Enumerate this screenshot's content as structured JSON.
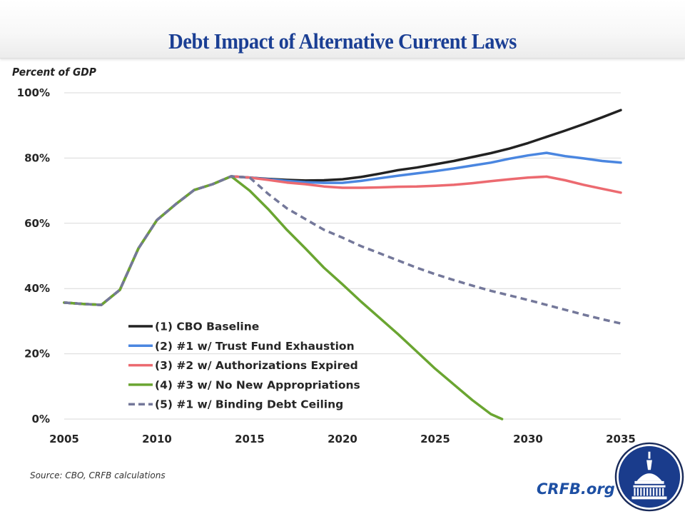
{
  "header": {
    "title": "Debt Impact of Alternative Current Laws"
  },
  "footer": {
    "source": "Source: CBO, CRFB calculations",
    "site": "CRFB.org",
    "logo_icon": "capitol-dome-seal-icon"
  },
  "colors": {
    "title": "#1b3f94",
    "cbo_baseline": "#222222",
    "trust_fund": "#4a86e0",
    "authorizations": "#ec6a70",
    "no_appropriations": "#6aa531",
    "debt_ceiling": "#74789a",
    "site": "#1d4fa3",
    "logo": "#1a3c8c"
  },
  "chart_data": {
    "type": "line",
    "title": "Debt Impact of Alternative Current Laws",
    "xlabel": "",
    "ylabel": "Percent of GDP",
    "xlim": [
      2005,
      2035
    ],
    "ylim": [
      0,
      100
    ],
    "x_ticks": [
      2005,
      2010,
      2015,
      2020,
      2025,
      2030,
      2035
    ],
    "x_tick_labels": [
      "2005",
      "2010",
      "2015",
      "2020",
      "2025",
      "2030",
      "2035"
    ],
    "y_ticks": [
      0,
      20,
      40,
      60,
      80,
      100
    ],
    "y_tick_labels": [
      "0%",
      "20%",
      "40%",
      "60%",
      "80%",
      "100%"
    ],
    "grid": "horizontal",
    "legend_position": "lower-left",
    "series": [
      {
        "name": "(1) CBO Baseline",
        "style": "solid",
        "x": [
          2005,
          2006,
          2007,
          2008,
          2009,
          2010,
          2011,
          2012,
          2013,
          2014,
          2015,
          2016,
          2017,
          2018,
          2019,
          2020,
          2021,
          2022,
          2023,
          2024,
          2025,
          2026,
          2027,
          2028,
          2029,
          2030,
          2031,
          2032,
          2033,
          2034,
          2035
        ],
        "values": [
          35.7,
          35.3,
          35.0,
          39.6,
          52.3,
          61.0,
          65.8,
          70.2,
          72.0,
          74.4,
          74.0,
          73.6,
          73.3,
          73.1,
          73.2,
          73.5,
          74.2,
          75.2,
          76.3,
          77.1,
          78.1,
          79.1,
          80.3,
          81.5,
          82.9,
          84.6,
          86.5,
          88.4,
          90.4,
          92.5,
          94.7
        ]
      },
      {
        "name": "(2) #1 w/ Trust Fund Exhaustion",
        "style": "solid",
        "x": [
          2005,
          2006,
          2007,
          2008,
          2009,
          2010,
          2011,
          2012,
          2013,
          2014,
          2015,
          2016,
          2017,
          2018,
          2019,
          2020,
          2021,
          2022,
          2023,
          2024,
          2025,
          2026,
          2027,
          2028,
          2029,
          2030,
          2031,
          2032,
          2033,
          2034,
          2035
        ],
        "values": [
          35.7,
          35.3,
          35.0,
          39.6,
          52.3,
          61.0,
          65.8,
          70.2,
          72.0,
          74.4,
          74.0,
          73.5,
          73.0,
          72.6,
          72.4,
          72.4,
          73.0,
          73.8,
          74.6,
          75.3,
          76.0,
          76.8,
          77.7,
          78.6,
          79.8,
          80.8,
          81.6,
          80.6,
          79.9,
          79.1,
          78.6
        ]
      },
      {
        "name": "(3) #2 w/ Authorizations Expired",
        "style": "solid",
        "x": [
          2005,
          2006,
          2007,
          2008,
          2009,
          2010,
          2011,
          2012,
          2013,
          2014,
          2015,
          2016,
          2017,
          2018,
          2019,
          2020,
          2021,
          2022,
          2023,
          2024,
          2025,
          2026,
          2027,
          2028,
          2029,
          2030,
          2031,
          2032,
          2033,
          2034,
          2035
        ],
        "values": [
          35.7,
          35.3,
          35.0,
          39.6,
          52.3,
          61.0,
          65.8,
          70.2,
          72.0,
          74.4,
          74.0,
          73.3,
          72.5,
          72.0,
          71.3,
          70.9,
          70.9,
          71.0,
          71.2,
          71.3,
          71.5,
          71.8,
          72.3,
          72.9,
          73.5,
          74.0,
          74.3,
          73.2,
          71.8,
          70.6,
          69.4
        ]
      },
      {
        "name": "(4) #3 w/ No New Appropriations",
        "style": "solid",
        "x": [
          2005,
          2006,
          2007,
          2008,
          2009,
          2010,
          2011,
          2012,
          2013,
          2014,
          2015,
          2016,
          2017,
          2018,
          2019,
          2020,
          2021,
          2022,
          2023,
          2024,
          2025,
          2026,
          2027,
          2028,
          2028.6
        ],
        "values": [
          35.7,
          35.3,
          35.0,
          39.6,
          52.3,
          61.0,
          65.8,
          70.2,
          72.0,
          74.4,
          70.0,
          64.3,
          58.0,
          52.3,
          46.4,
          41.3,
          36.0,
          31.0,
          26.0,
          20.7,
          15.4,
          10.6,
          5.8,
          1.5,
          0.0
        ]
      },
      {
        "name": "(5) #1 w/ Binding Debt Ceiling",
        "style": "dashed",
        "x": [
          2005,
          2006,
          2007,
          2008,
          2009,
          2010,
          2011,
          2012,
          2013,
          2014,
          2015,
          2016,
          2017,
          2018,
          2019,
          2020,
          2021,
          2022,
          2023,
          2024,
          2025,
          2026,
          2027,
          2028,
          2029,
          2030,
          2031,
          2032,
          2033,
          2034,
          2035
        ],
        "values": [
          35.7,
          35.3,
          35.0,
          39.6,
          52.3,
          61.0,
          65.8,
          70.2,
          72.0,
          74.4,
          74.0,
          69.0,
          64.6,
          61.3,
          58.0,
          55.6,
          53.0,
          50.8,
          48.6,
          46.4,
          44.4,
          42.6,
          40.9,
          39.3,
          37.9,
          36.5,
          35.0,
          33.5,
          32.0,
          30.6,
          29.3
        ]
      }
    ]
  }
}
